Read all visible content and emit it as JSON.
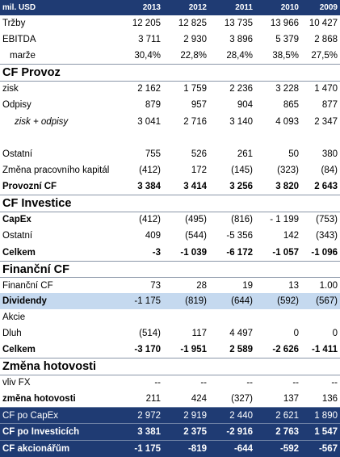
{
  "header": {
    "label": "mil. USD",
    "years": [
      "2013",
      "2012",
      "2011",
      "2010",
      "2009"
    ]
  },
  "rows": [
    {
      "label": "Tržby",
      "values": [
        "12 205",
        "12 825",
        "13 735",
        "13 966",
        "10 427"
      ]
    },
    {
      "label": "EBITDA",
      "values": [
        "3 711",
        "2 930",
        "3 896",
        "5 379",
        "2 868"
      ]
    },
    {
      "label": "marže",
      "values": [
        "30,4%",
        "22,8%",
        "28,4%",
        "38,5%",
        "27,5%"
      ]
    },
    {
      "label": "CF Provoz",
      "values": [
        "",
        "",
        "",
        "",
        ""
      ]
    },
    {
      "label": "zisk",
      "values": [
        "2 162",
        "1 759",
        "2 236",
        "3 228",
        "1 470"
      ]
    },
    {
      "label": "Odpisy",
      "values": [
        "879",
        "957",
        "904",
        "865",
        "877"
      ]
    },
    {
      "label": "zisk + odpisy",
      "values": [
        "3 041",
        "2 716",
        "3 140",
        "4 093",
        "2 347"
      ]
    },
    {
      "label": "",
      "values": [
        "",
        "",
        "",
        "",
        ""
      ]
    },
    {
      "label": "Ostatní",
      "values": [
        "755",
        "526",
        "261",
        "50",
        "380"
      ]
    },
    {
      "label": "Změna pracovního kapitál",
      "values": [
        "(412)",
        "172",
        "(145)",
        "(323)",
        "(84)"
      ]
    },
    {
      "label": "Provozní CF",
      "values": [
        "3 384",
        "3 414",
        "3 256",
        "3 820",
        "2 643"
      ]
    },
    {
      "label": "CF Investice",
      "values": [
        "",
        "",
        "",
        "",
        ""
      ]
    },
    {
      "label": "CapEx",
      "values": [
        "(412)",
        "(495)",
        "(816)",
        "- 1 199",
        "(753)"
      ]
    },
    {
      "label": "Ostatní",
      "values": [
        "409",
        "(544)",
        "-5 356",
        "142",
        "(343)"
      ]
    },
    {
      "label": "Celkem",
      "values": [
        "-3",
        "-1 039",
        "-6 172",
        "-1 057",
        "-1 096"
      ]
    },
    {
      "label": "Finanční CF",
      "values": [
        "",
        "",
        "",
        "",
        ""
      ]
    },
    {
      "label": "Finanční CF",
      "values": [
        "73",
        "28",
        "19",
        "13",
        "1.00"
      ]
    },
    {
      "label": "Dividendy",
      "values": [
        "-1 175",
        "(819)",
        "(644)",
        "(592)",
        "(567)"
      ]
    },
    {
      "label": "Akcie",
      "values": [
        "",
        "",
        "",
        "",
        ""
      ]
    },
    {
      "label": "Dluh",
      "values": [
        "(514)",
        "117",
        "4 497",
        "0",
        "0"
      ]
    },
    {
      "label": "Celkem",
      "values": [
        "-3 170",
        "-1 951",
        "2 589",
        "-2 626",
        "-1 411"
      ]
    },
    {
      "label": "Změna hotovosti",
      "values": [
        "",
        "",
        "",
        "",
        ""
      ]
    },
    {
      "label": "vliv FX",
      "values": [
        "--",
        "--",
        "--",
        "--",
        "--"
      ]
    },
    {
      "label": "změna hotovosti",
      "values": [
        "211",
        "424",
        "(327)",
        "137",
        "136"
      ]
    },
    {
      "label": "CF po CapEx",
      "values": [
        "2 972",
        "2 919",
        "2 440",
        "2 621",
        "1 890"
      ]
    },
    {
      "label": "CF po Investicích",
      "values": [
        "3 381",
        "2 375",
        "-2 916",
        "2 763",
        "1 547"
      ]
    },
    {
      "label": "CF akcionářům",
      "values": [
        "-1 175",
        "-819",
        "-644",
        "-592",
        "-567"
      ]
    }
  ],
  "colors": {
    "header_bg": "#1f3b73",
    "highlight_bg": "#c5d9ef",
    "grid": "#8a96a8"
  }
}
